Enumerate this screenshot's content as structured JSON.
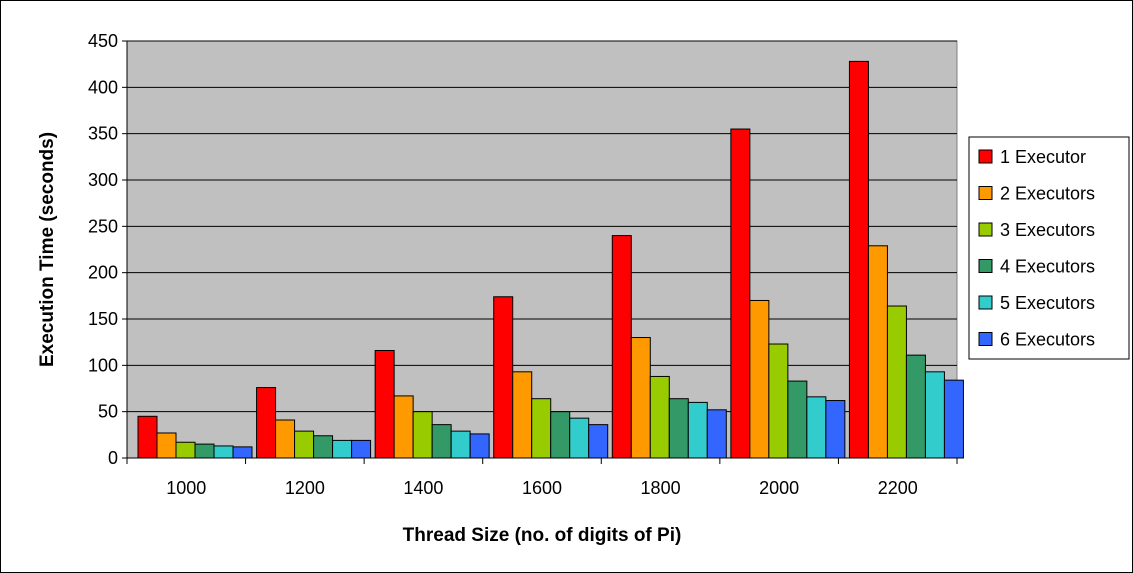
{
  "chart_data": {
    "type": "bar",
    "title": "",
    "xlabel": "Thread Size (no. of digits of Pi)",
    "ylabel": "Execution Time (seconds)",
    "ylim": [
      0,
      450
    ],
    "yticks": [
      0,
      50,
      100,
      150,
      200,
      250,
      300,
      350,
      400,
      450
    ],
    "grid": true,
    "legend_position": "right",
    "plot_background": "#c0c0c0",
    "categories": [
      "1000",
      "1200",
      "1400",
      "1600",
      "1800",
      "2000",
      "2200"
    ],
    "series": [
      {
        "name": "1 Executor",
        "color": "#ff0000",
        "values": [
          45,
          76,
          116,
          174,
          240,
          355,
          428
        ]
      },
      {
        "name": "2 Executors",
        "color": "#ff9900",
        "values": [
          27,
          41,
          67,
          93,
          130,
          170,
          229
        ]
      },
      {
        "name": "3 Executors",
        "color": "#99cc00",
        "values": [
          17,
          29,
          50,
          64,
          88,
          123,
          164
        ]
      },
      {
        "name": "4 Executors",
        "color": "#339966",
        "values": [
          15,
          24,
          36,
          50,
          64,
          83,
          111
        ]
      },
      {
        "name": "5 Executors",
        "color": "#33cccc",
        "values": [
          13,
          19,
          29,
          43,
          60,
          66,
          93
        ]
      },
      {
        "name": "6 Executors",
        "color": "#3366ff",
        "values": [
          12,
          19,
          26,
          36,
          52,
          62,
          84
        ]
      }
    ]
  }
}
